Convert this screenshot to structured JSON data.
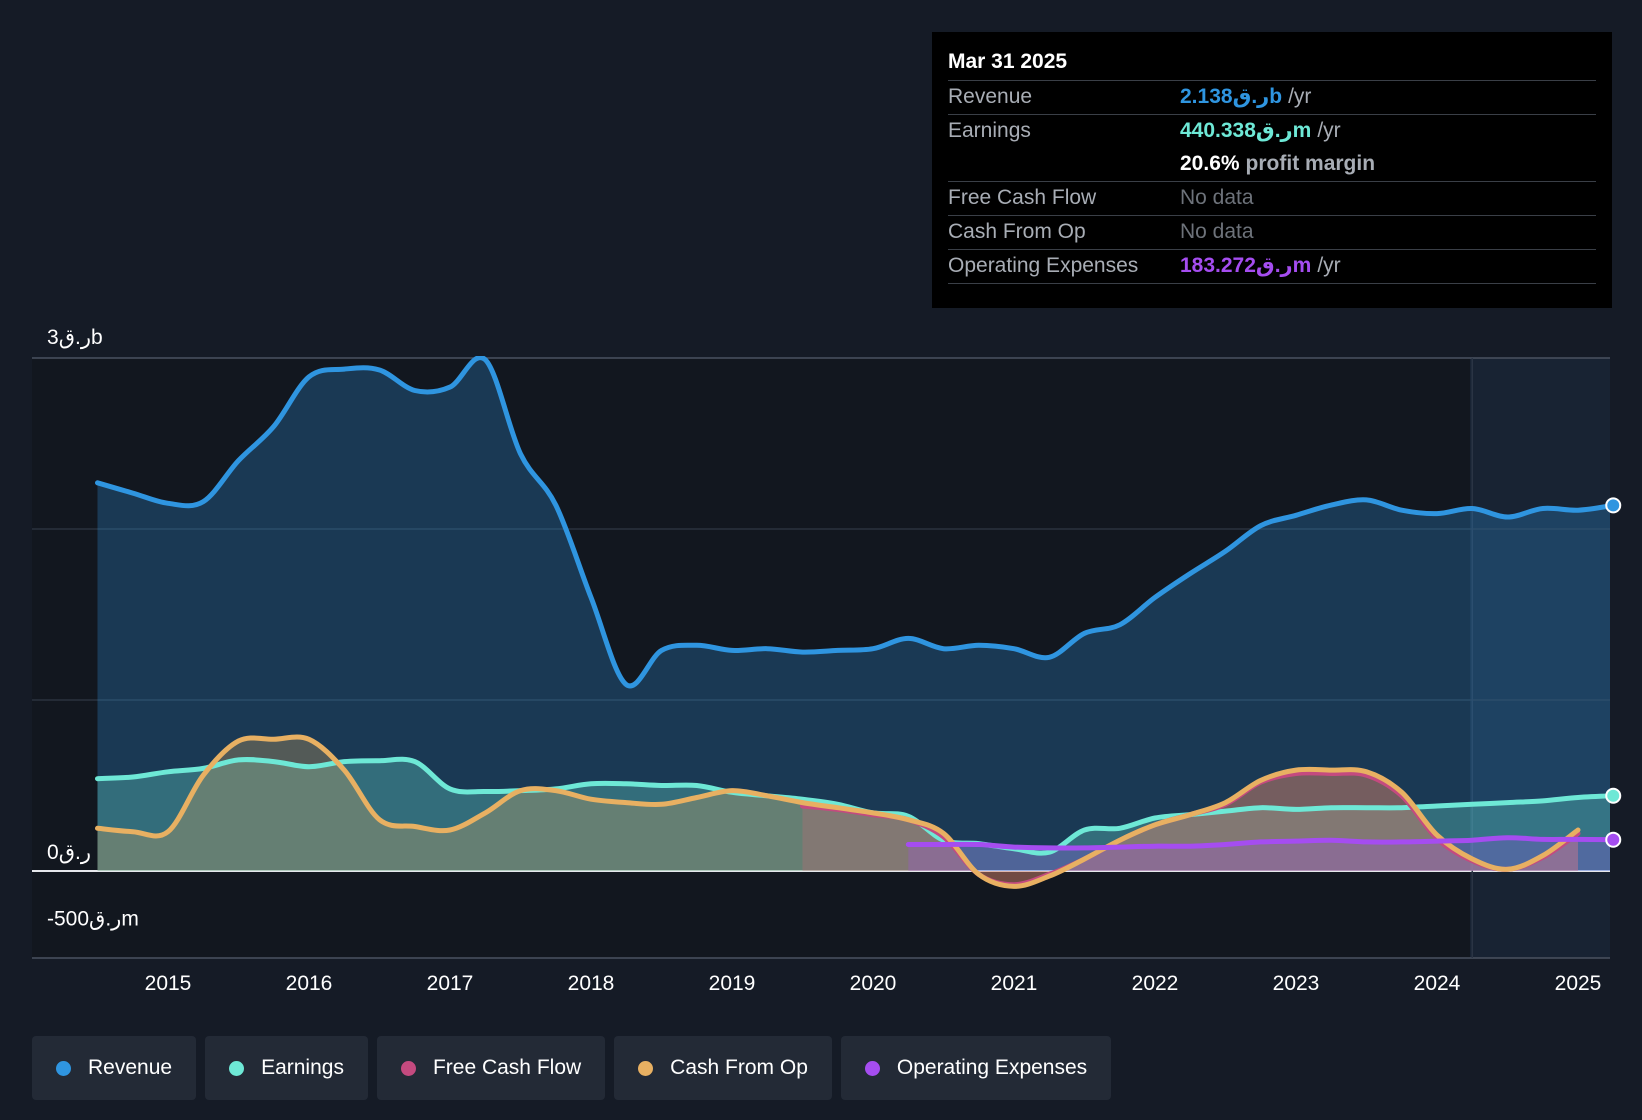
{
  "tooltip": {
    "date": "Mar 31 2025",
    "rows": [
      {
        "label": "Revenue",
        "value": "2.138ر.قb",
        "unit": "/yr",
        "color": "#2f95e0"
      },
      {
        "label": "Earnings",
        "value": "440.338ر.قm",
        "unit": "/yr",
        "color": "#6ee8d6"
      },
      {
        "label": "",
        "value": "20.6%",
        "unit": "profit margin",
        "color": "#ffffff"
      },
      {
        "label": "Free Cash Flow",
        "value": "No data",
        "unit": "",
        "color": "#6d727a"
      },
      {
        "label": "Cash From Op",
        "value": "No data",
        "unit": "",
        "color": "#6d727a"
      },
      {
        "label": "Operating Expenses",
        "value": "183.272ر.قm",
        "unit": "/yr",
        "color": "#a54df0"
      }
    ]
  },
  "legend": [
    {
      "label": "Revenue",
      "color": "#2f95e0"
    },
    {
      "label": "Earnings",
      "color": "#6ee8d6"
    },
    {
      "label": "Free Cash Flow",
      "color": "#c44a7f"
    },
    {
      "label": "Cash From Op",
      "color": "#e8b062"
    },
    {
      "label": "Operating Expenses",
      "color": "#a54df0"
    }
  ],
  "chart_data": {
    "type": "line",
    "title": "",
    "xlabel": "",
    "ylabel": "",
    "ylim": [
      -500,
      3000
    ],
    "xlim": [
      2014.25,
      2025.25
    ],
    "y_tick_labels": [
      {
        "value": 3000,
        "label": "3ر.قb"
      },
      {
        "value": 0,
        "label": "0ر.ق"
      },
      {
        "value": -500,
        "label": "-500ر.قm"
      }
    ],
    "x_ticks": [
      2015,
      2016,
      2017,
      2018,
      2019,
      2020,
      2021,
      2022,
      2023,
      2024,
      2025
    ],
    "x_tick_labels": [
      "2015",
      "2016",
      "2017",
      "2018",
      "2019",
      "2020",
      "2021",
      "2022",
      "2023",
      "2024",
      "2025"
    ],
    "forecast_start": 2024.25,
    "series": [
      {
        "name": "Revenue",
        "color": "#2f95e0",
        "end_marker": true,
        "points": [
          [
            2014.5,
            2270
          ],
          [
            2014.75,
            2210
          ],
          [
            2015.0,
            2150
          ],
          [
            2015.25,
            2160
          ],
          [
            2015.5,
            2400
          ],
          [
            2015.75,
            2600
          ],
          [
            2016.0,
            2890
          ],
          [
            2016.25,
            2935
          ],
          [
            2016.5,
            2930
          ],
          [
            2016.75,
            2810
          ],
          [
            2017.0,
            2830
          ],
          [
            2017.25,
            2990
          ],
          [
            2017.5,
            2440
          ],
          [
            2017.75,
            2140
          ],
          [
            2018.0,
            1600
          ],
          [
            2018.25,
            1090
          ],
          [
            2018.5,
            1290
          ],
          [
            2018.75,
            1320
          ],
          [
            2019.0,
            1290
          ],
          [
            2019.25,
            1300
          ],
          [
            2019.5,
            1280
          ],
          [
            2019.75,
            1290
          ],
          [
            2020.0,
            1300
          ],
          [
            2020.25,
            1360
          ],
          [
            2020.5,
            1300
          ],
          [
            2020.75,
            1320
          ],
          [
            2021.0,
            1300
          ],
          [
            2021.25,
            1250
          ],
          [
            2021.5,
            1390
          ],
          [
            2021.75,
            1440
          ],
          [
            2022.0,
            1600
          ],
          [
            2022.25,
            1740
          ],
          [
            2022.5,
            1870
          ],
          [
            2022.75,
            2020
          ],
          [
            2023.0,
            2080
          ],
          [
            2023.25,
            2140
          ],
          [
            2023.5,
            2170
          ],
          [
            2023.75,
            2110
          ],
          [
            2024.0,
            2090
          ],
          [
            2024.25,
            2120
          ],
          [
            2024.5,
            2070
          ],
          [
            2024.75,
            2120
          ],
          [
            2025.0,
            2110
          ],
          [
            2025.25,
            2138
          ]
        ]
      },
      {
        "name": "Earnings",
        "color": "#6ee8d6",
        "end_marker": true,
        "points": [
          [
            2014.5,
            540
          ],
          [
            2014.75,
            550
          ],
          [
            2015.0,
            580
          ],
          [
            2015.25,
            600
          ],
          [
            2015.5,
            650
          ],
          [
            2015.75,
            640
          ],
          [
            2016.0,
            610
          ],
          [
            2016.25,
            640
          ],
          [
            2016.5,
            645
          ],
          [
            2016.75,
            640
          ],
          [
            2017.0,
            480
          ],
          [
            2017.25,
            465
          ],
          [
            2017.5,
            470
          ],
          [
            2017.75,
            480
          ],
          [
            2018.0,
            510
          ],
          [
            2018.25,
            510
          ],
          [
            2018.5,
            500
          ],
          [
            2018.75,
            500
          ],
          [
            2019.0,
            460
          ],
          [
            2019.25,
            440
          ],
          [
            2019.5,
            420
          ],
          [
            2019.75,
            390
          ],
          [
            2020.0,
            340
          ],
          [
            2020.25,
            320
          ],
          [
            2020.5,
            180
          ],
          [
            2020.75,
            160
          ],
          [
            2021.0,
            130
          ],
          [
            2021.25,
            110
          ],
          [
            2021.5,
            240
          ],
          [
            2021.75,
            250
          ],
          [
            2022.0,
            310
          ],
          [
            2022.25,
            330
          ],
          [
            2022.5,
            350
          ],
          [
            2022.75,
            370
          ],
          [
            2023.0,
            360
          ],
          [
            2023.25,
            370
          ],
          [
            2023.5,
            370
          ],
          [
            2023.75,
            370
          ],
          [
            2024.0,
            380
          ],
          [
            2024.25,
            390
          ],
          [
            2024.5,
            400
          ],
          [
            2024.75,
            410
          ],
          [
            2025.0,
            430
          ],
          [
            2025.25,
            440
          ]
        ]
      },
      {
        "name": "Free Cash Flow",
        "color": "#c44a7f",
        "end_marker": false,
        "points": [
          [
            2019.5,
            380
          ],
          [
            2019.75,
            360
          ],
          [
            2020.0,
            330
          ],
          [
            2020.25,
            300
          ],
          [
            2020.5,
            200
          ],
          [
            2020.75,
            -20
          ],
          [
            2021.0,
            -80
          ],
          [
            2021.25,
            -20
          ],
          [
            2021.5,
            70
          ],
          [
            2021.75,
            180
          ],
          [
            2022.0,
            270
          ],
          [
            2022.25,
            330
          ],
          [
            2022.5,
            390
          ],
          [
            2022.75,
            520
          ],
          [
            2023.0,
            570
          ],
          [
            2023.25,
            570
          ],
          [
            2023.5,
            560
          ],
          [
            2023.75,
            440
          ],
          [
            2024.0,
            190
          ],
          [
            2024.25,
            60
          ],
          [
            2024.5,
            10
          ],
          [
            2024.75,
            80
          ],
          [
            2025.0,
            220
          ]
        ]
      },
      {
        "name": "Cash From Op",
        "color": "#e8b062",
        "end_marker": false,
        "points": [
          [
            2014.5,
            250
          ],
          [
            2014.75,
            230
          ],
          [
            2015.0,
            230
          ],
          [
            2015.25,
            560
          ],
          [
            2015.5,
            760
          ],
          [
            2015.75,
            770
          ],
          [
            2016.0,
            770
          ],
          [
            2016.25,
            590
          ],
          [
            2016.5,
            300
          ],
          [
            2016.75,
            260
          ],
          [
            2017.0,
            240
          ],
          [
            2017.25,
            340
          ],
          [
            2017.5,
            470
          ],
          [
            2017.75,
            470
          ],
          [
            2018.0,
            420
          ],
          [
            2018.25,
            400
          ],
          [
            2018.5,
            390
          ],
          [
            2018.75,
            430
          ],
          [
            2019.0,
            470
          ],
          [
            2019.25,
            440
          ],
          [
            2019.5,
            400
          ],
          [
            2019.75,
            370
          ],
          [
            2020.0,
            340
          ],
          [
            2020.25,
            300
          ],
          [
            2020.5,
            220
          ],
          [
            2020.75,
            -20
          ],
          [
            2021.0,
            -90
          ],
          [
            2021.25,
            -30
          ],
          [
            2021.5,
            70
          ],
          [
            2021.75,
            180
          ],
          [
            2022.0,
            270
          ],
          [
            2022.25,
            330
          ],
          [
            2022.5,
            400
          ],
          [
            2022.75,
            530
          ],
          [
            2023.0,
            590
          ],
          [
            2023.25,
            590
          ],
          [
            2023.5,
            580
          ],
          [
            2023.75,
            460
          ],
          [
            2024.0,
            210
          ],
          [
            2024.25,
            70
          ],
          [
            2024.5,
            10
          ],
          [
            2024.75,
            90
          ],
          [
            2025.0,
            240
          ]
        ]
      },
      {
        "name": "Operating Expenses",
        "color": "#a54df0",
        "end_marker": true,
        "points": [
          [
            2020.25,
            155
          ],
          [
            2020.5,
            155
          ],
          [
            2020.75,
            155
          ],
          [
            2021.0,
            140
          ],
          [
            2021.25,
            135
          ],
          [
            2021.5,
            135
          ],
          [
            2021.75,
            140
          ],
          [
            2022.0,
            145
          ],
          [
            2022.25,
            145
          ],
          [
            2022.5,
            155
          ],
          [
            2022.75,
            170
          ],
          [
            2023.0,
            175
          ],
          [
            2023.25,
            180
          ],
          [
            2023.5,
            170
          ],
          [
            2023.75,
            170
          ],
          [
            2024.0,
            175
          ],
          [
            2024.25,
            180
          ],
          [
            2024.5,
            195
          ],
          [
            2024.75,
            185
          ],
          [
            2025.0,
            185
          ],
          [
            2025.25,
            183
          ]
        ]
      }
    ]
  }
}
